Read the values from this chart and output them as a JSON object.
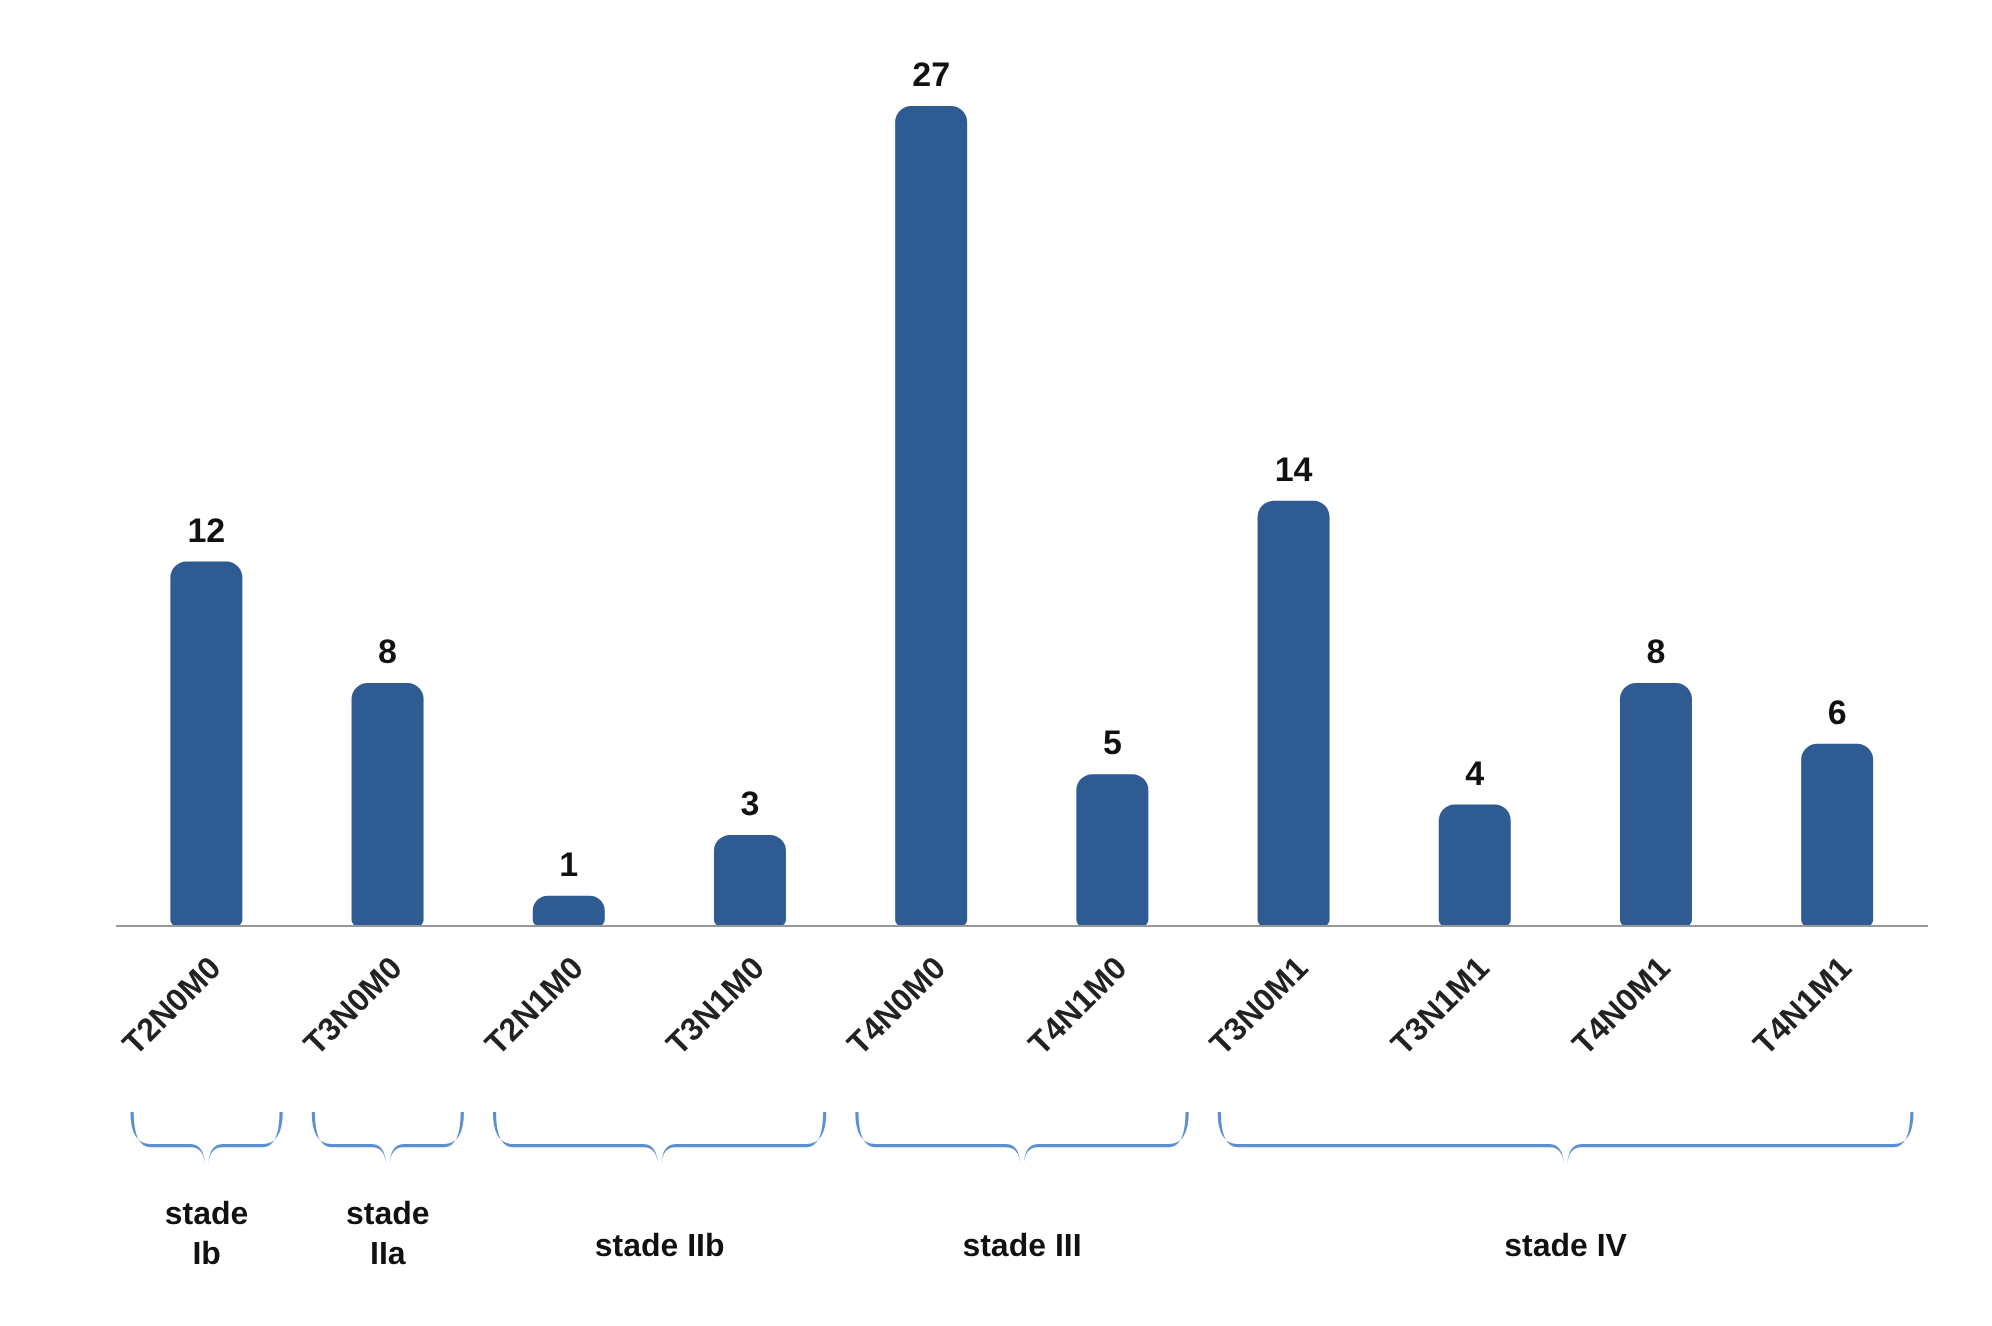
{
  "chart_data": {
    "type": "bar",
    "categories": [
      "T2N0M0",
      "T3N0M0",
      "T2N1M0",
      "T3N1M0",
      "T4N0M0",
      "T4N1M0",
      "T3N0M1",
      "T3N1M1",
      "T4N0M1",
      "T4N1M1"
    ],
    "values": [
      12,
      8,
      1,
      3,
      27,
      5,
      14,
      4,
      8,
      6
    ],
    "color": "#2f5b93",
    "data_labels": true,
    "grid": false,
    "legend": false,
    "annotations": [
      "stade Ib",
      "stade IIa",
      "stade IIb",
      "stade III",
      "stade IV"
    ]
  }
}
